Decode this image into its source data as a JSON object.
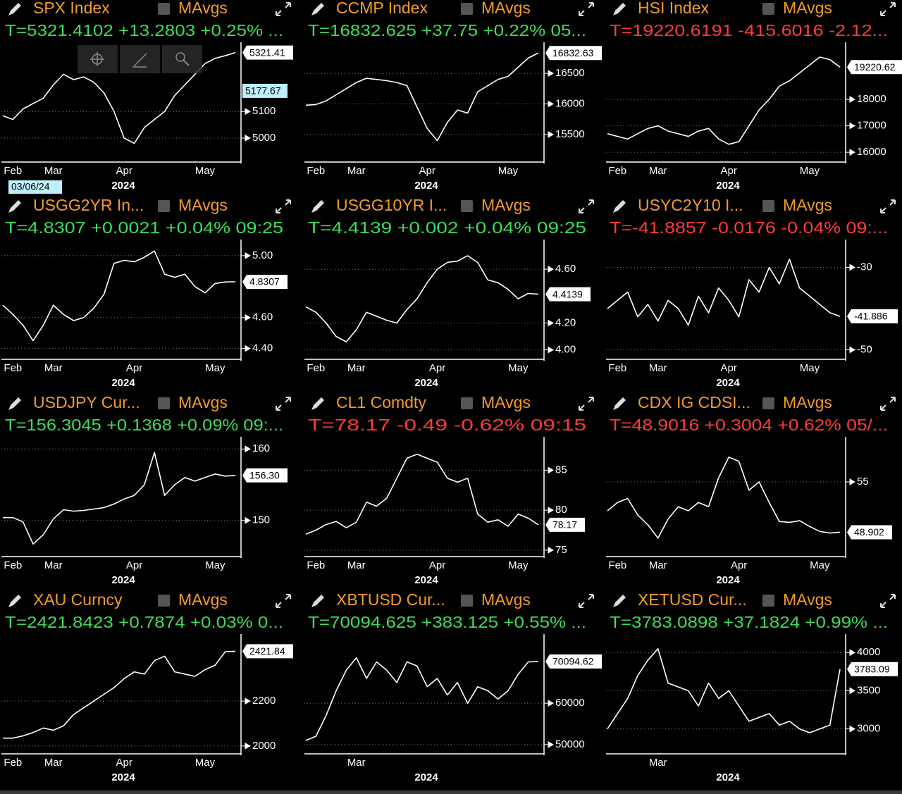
{
  "chart_data": [
    {
      "type": "line",
      "title": "SPX Index",
      "legend": "MAvgs",
      "quote": "T=5321.4102 +13.2803 +0.25% ...",
      "quote_color": "#3ddc5a",
      "color": "#ffffff",
      "categories": [
        null,
        "Feb",
        null,
        null,
        null,
        "Mar",
        null,
        null,
        null,
        null,
        null,
        null,
        "Apr",
        null,
        null,
        null,
        null,
        null,
        null,
        null,
        "May",
        null,
        null,
        null
      ],
      "x_label": "2024",
      "values": [
        5084,
        5070,
        5110,
        5130,
        5150,
        5200,
        5240,
        5220,
        5230,
        5210,
        5170,
        5100,
        5000,
        4980,
        5040,
        5070,
        5100,
        5160,
        5200,
        5240,
        5280,
        5300,
        5310,
        5321.41
      ],
      "ylim": [
        4910,
        5355
      ],
      "yticks": [
        5000,
        5100
      ],
      "last": 5321.41,
      "crosshair": {
        "date": "03/06/24",
        "value": 5177.67
      }
    },
    {
      "type": "line",
      "title": "CCMP Index",
      "legend": "MAvgs",
      "quote": "T=16832.625 +37.75 +0.22% 05...",
      "quote_color": "#3ddc5a",
      "color": "#ffffff",
      "categories": [
        null,
        "Feb",
        null,
        null,
        null,
        "Mar",
        null,
        null,
        null,
        null,
        null,
        null,
        "Apr",
        null,
        null,
        null,
        null,
        null,
        null,
        null,
        "May",
        null,
        null,
        null
      ],
      "x_label": "2024",
      "values": [
        15980,
        15990,
        16050,
        16150,
        16250,
        16350,
        16420,
        16400,
        16380,
        16350,
        16300,
        15950,
        15600,
        15400,
        15700,
        15900,
        15850,
        16200,
        16300,
        16400,
        16450,
        16600,
        16750,
        16832.63
      ],
      "ylim": [
        15050,
        16985
      ],
      "yticks": [
        15500,
        16000,
        16500
      ],
      "last": 16832.63
    },
    {
      "type": "line",
      "title": "HSI Index",
      "legend": "MAvgs",
      "quote": "T=19220.6191 -415.6016 -2.12...",
      "quote_color": "#ff3b3b",
      "color": "#ffffff",
      "categories": [
        null,
        "Feb",
        null,
        null,
        null,
        "Mar",
        null,
        null,
        null,
        null,
        null,
        null,
        "Apr",
        null,
        null,
        null,
        null,
        null,
        null,
        null,
        "May",
        null,
        null,
        null
      ],
      "x_label": "2024",
      "values": [
        16700,
        16600,
        16500,
        16700,
        16900,
        17000,
        16800,
        16700,
        16600,
        16800,
        16900,
        16500,
        16300,
        16400,
        17000,
        17600,
        18000,
        18500,
        18700,
        19000,
        19300,
        19600,
        19500,
        19220.62
      ],
      "ylim": [
        15630,
        20105
      ],
      "yticks": [
        16000,
        17000,
        18000
      ],
      "last": 19220.62
    },
    {
      "type": "line",
      "title": "USGG2YR In...",
      "legend": "MAvgs",
      "quote": "T=4.8307 +0.0021 +0.04% 09:25",
      "quote_color": "#3ddc5a",
      "color": "#ffffff",
      "categories": [
        null,
        "Feb",
        null,
        null,
        null,
        "Mar",
        null,
        null,
        null,
        null,
        null,
        null,
        null,
        "Apr",
        null,
        null,
        null,
        null,
        null,
        null,
        null,
        "May",
        null,
        null
      ],
      "x_label": "2024",
      "values": [
        4.68,
        4.62,
        4.55,
        4.45,
        4.55,
        4.68,
        4.62,
        4.58,
        4.6,
        4.66,
        4.75,
        4.95,
        4.97,
        4.96,
        4.99,
        5.03,
        4.88,
        4.86,
        4.88,
        4.8,
        4.76,
        4.82,
        4.83,
        4.8307
      ],
      "ylim": [
        4.33,
        5.095
      ],
      "yticks": [
        {
          "value": 4.4,
          "label": "4.40"
        },
        {
          "value": 4.6,
          "label": "4.60"
        },
        {
          "value": 5,
          "label": "5.00"
        }
      ],
      "last": 4.8307
    },
    {
      "type": "line",
      "title": "USGG10YR I...",
      "legend": "MAvgs",
      "quote": "T=4.4139 +0.002 +0.04% 09:25",
      "quote_color": "#3ddc5a",
      "color": "#ffffff",
      "categories": [
        null,
        "Feb",
        null,
        null,
        null,
        "Mar",
        null,
        null,
        null,
        null,
        null,
        null,
        null,
        "Apr",
        null,
        null,
        null,
        null,
        null,
        null,
        null,
        "May",
        null,
        null
      ],
      "x_label": "2024",
      "values": [
        4.32,
        4.28,
        4.2,
        4.1,
        4.06,
        4.15,
        4.28,
        4.25,
        4.22,
        4.2,
        4.3,
        4.38,
        4.5,
        4.6,
        4.65,
        4.66,
        4.7,
        4.65,
        4.52,
        4.5,
        4.45,
        4.38,
        4.42,
        4.4139
      ],
      "ylim": [
        3.93,
        4.81
      ],
      "yticks": [
        {
          "value": 4,
          "label": "4.00"
        },
        {
          "value": 4.2,
          "label": "4.20"
        },
        {
          "value": 4.6,
          "label": "4.60"
        }
      ],
      "last": 4.4139
    },
    {
      "type": "line",
      "title": "USYC2Y10 I...",
      "legend": "MAvgs",
      "quote": "T=-41.8857 -0.0176 -0.04% 09:...",
      "quote_color": "#ff3b3b",
      "color": "#ffffff",
      "categories": [
        null,
        "Feb",
        null,
        null,
        null,
        "Mar",
        null,
        null,
        null,
        null,
        null,
        null,
        "Apr",
        null,
        null,
        null,
        null,
        null,
        null,
        null,
        "May",
        null,
        null,
        null
      ],
      "x_label": "2024",
      "values": [
        -40,
        -38,
        -36,
        -42,
        -39,
        -43,
        -38,
        -40,
        -44,
        -37,
        -41,
        -35,
        -38,
        -42,
        -33,
        -36,
        -30,
        -34,
        -28,
        -35,
        -37,
        -39,
        -41,
        -41.886
      ],
      "ylim": [
        -52.3,
        -23.6
      ],
      "yticks": [
        -50,
        -30
      ],
      "last": -41.886
    },
    {
      "type": "line",
      "title": "USDJPY Cur...",
      "legend": "MAvgs",
      "quote": "T=156.3045 +0.1368 +0.09% 09:...",
      "quote_color": "#3ddc5a",
      "color": "#ffffff",
      "categories": [
        null,
        "Feb",
        null,
        null,
        null,
        "Mar",
        null,
        null,
        null,
        null,
        null,
        null,
        null,
        "Apr",
        null,
        null,
        null,
        null,
        null,
        null,
        null,
        "May",
        null,
        null
      ],
      "x_label": "2024",
      "values": [
        150.4,
        150.4,
        149.8,
        146.7,
        148,
        150.2,
        151.5,
        151.3,
        151.4,
        151.6,
        151.8,
        152.3,
        153,
        153.5,
        155,
        159.5,
        153.5,
        155,
        156,
        155.5,
        156,
        156.5,
        156.2,
        156.3
      ],
      "ylim": [
        144.95,
        161.5
      ],
      "yticks": [
        150,
        160
      ],
      "last": {
        "value": 156.3,
        "label": "156.30"
      }
    },
    {
      "type": "line",
      "title": "CL1 Comdty",
      "legend": "MAvgs",
      "quote": "T=78.17 -0.49 -0.62% 09:15",
      "quote_color": "#ff3b3b",
      "color": "#ffffff",
      "categories": [
        null,
        "Feb",
        null,
        null,
        null,
        "Mar",
        null,
        null,
        null,
        null,
        null,
        null,
        null,
        "Apr",
        null,
        null,
        null,
        null,
        null,
        null,
        null,
        "May",
        null,
        null
      ],
      "x_label": "2024",
      "values": [
        77,
        77.5,
        78.2,
        78.6,
        77.8,
        78.5,
        81,
        80.5,
        81.5,
        84,
        86.5,
        87,
        86.5,
        86,
        84,
        83.5,
        84,
        79.5,
        78.5,
        78.8,
        78,
        79.5,
        79,
        78.17
      ],
      "ylim": [
        74.2,
        89
      ],
      "yticks": [
        75,
        80,
        85
      ],
      "last": 78.17
    },
    {
      "type": "line",
      "title": "CDX IG CDSI...",
      "legend": "MAvgs",
      "quote": "T=48.9016 +0.3004 +0.62% 05/...",
      "quote_color": "#ff3b3b",
      "color": "#ffffff",
      "categories": [
        null,
        "Feb",
        null,
        null,
        null,
        "Mar",
        null,
        null,
        null,
        null,
        null,
        null,
        null,
        "Apr",
        null,
        null,
        null,
        null,
        null,
        null,
        null,
        "May",
        null,
        null
      ],
      "x_label": "2024",
      "values": [
        51.5,
        52.5,
        53,
        51,
        49.8,
        48.2,
        50.5,
        52,
        51.5,
        52.5,
        52,
        55.5,
        58,
        57.5,
        54,
        55,
        52.5,
        50.2,
        50.1,
        50.3,
        49.6,
        49,
        48.8,
        48.902
      ],
      "ylim": [
        45.95,
        60.3
      ],
      "yticks": [
        55
      ],
      "last": 48.902
    },
    {
      "type": "line",
      "title": "XAU Curncy",
      "legend": "MAvgs",
      "quote": "T=2421.8423 +0.7874 +0.03% 0...",
      "quote_color": "#3ddc5a",
      "color": "#ffffff",
      "categories": [
        null,
        "Feb",
        null,
        null,
        null,
        "Mar",
        null,
        null,
        null,
        null,
        null,
        null,
        "Apr",
        null,
        null,
        null,
        null,
        null,
        null,
        null,
        "May",
        null,
        null,
        null
      ],
      "x_label": "2024",
      "values": [
        2035,
        2035,
        2045,
        2060,
        2080,
        2070,
        2090,
        2140,
        2170,
        2200,
        2230,
        2260,
        2300,
        2330,
        2320,
        2380,
        2400,
        2330,
        2320,
        2310,
        2340,
        2360,
        2420,
        2421.84
      ],
      "ylim": [
        1965,
        2492
      ],
      "yticks": [
        2000,
        2200
      ],
      "last": 2421.84
    },
    {
      "type": "line",
      "title": "XBTUSD Cur...",
      "legend": "MAvgs",
      "quote": "T=70094.625 +383.125 +0.55% ...",
      "quote_color": "#3ddc5a",
      "color": "#ffffff",
      "categories": [
        null,
        null,
        null,
        null,
        null,
        "Mar",
        null,
        null,
        null,
        null,
        null,
        null,
        null,
        null,
        null,
        null,
        null,
        null,
        null,
        null,
        null,
        null,
        null,
        null
      ],
      "x_label": "2024",
      "values": [
        51000,
        52000,
        57000,
        63000,
        68000,
        71000,
        66000,
        70000,
        68000,
        65000,
        70000,
        69000,
        64000,
        66000,
        62000,
        65000,
        60000,
        64000,
        63000,
        61000,
        63000,
        67000,
        70000,
        70094.62
      ],
      "ylim": [
        47760,
        76380
      ],
      "yticks": [
        50000,
        60000
      ],
      "last": 70094.62
    },
    {
      "type": "line",
      "title": "XETUSD Cur...",
      "legend": "MAvgs",
      "quote": "T=3783.0898 +37.1824 +0.99% ...",
      "quote_color": "#3ddc5a",
      "color": "#ffffff",
      "categories": [
        null,
        null,
        null,
        null,
        null,
        "Mar",
        null,
        null,
        null,
        null,
        null,
        null,
        null,
        null,
        null,
        null,
        null,
        null,
        null,
        null,
        null,
        null,
        null,
        null
      ],
      "x_label": "2024",
      "values": [
        3000,
        3200,
        3400,
        3700,
        3900,
        4050,
        3600,
        3550,
        3500,
        3300,
        3600,
        3400,
        3500,
        3300,
        3100,
        3150,
        3200,
        3050,
        3100,
        3000,
        2950,
        3000,
        3050,
        3783.09
      ],
      "ylim": [
        2673,
        4224
      ],
      "yticks": [
        3000,
        3500,
        4000
      ],
      "last": 3783.09
    }
  ]
}
